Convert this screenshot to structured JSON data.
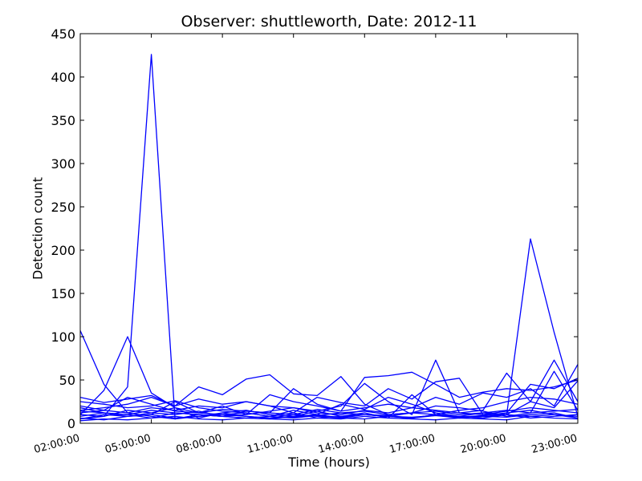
{
  "chart_data": {
    "type": "line",
    "title": "Observer: shuttleworth, Date: 2012-11",
    "xlabel": "Time (hours)",
    "ylabel": "Detection count",
    "xlim": [
      "02:00:00",
      "23:00:00"
    ],
    "ylim": [
      0,
      450
    ],
    "x_ticks": [
      "02:00:00",
      "05:00:00",
      "08:00:00",
      "11:00:00",
      "14:00:00",
      "17:00:00",
      "20:00:00",
      "23:00:00"
    ],
    "y_ticks": [
      0,
      50,
      100,
      150,
      200,
      250,
      300,
      350,
      400,
      450
    ],
    "grid": false,
    "legend": "none",
    "line_color": "#0000ff",
    "x": [
      "02:00:00",
      "03:00:00",
      "04:00:00",
      "05:00:00",
      "06:00:00",
      "07:00:00",
      "08:00:00",
      "09:00:00",
      "10:00:00",
      "11:00:00",
      "12:00:00",
      "13:00:00",
      "14:00:00",
      "15:00:00",
      "16:00:00",
      "17:00:00",
      "18:00:00",
      "19:00:00",
      "20:00:00",
      "21:00:00",
      "22:00:00",
      "23:00:00"
    ],
    "series": [
      {
        "values": [
          107,
          45,
          12,
          8,
          5,
          10,
          8,
          6,
          5,
          8,
          10,
          6,
          5,
          8,
          7,
          9,
          6,
          8,
          7,
          10,
          12,
          6
        ]
      },
      {
        "values": [
          10,
          38,
          100,
          35,
          18,
          12,
          10,
          8,
          6,
          7,
          9,
          12,
          10,
          8,
          6,
          10,
          7,
          9,
          12,
          15,
          10,
          8
        ]
      },
      {
        "values": [
          5,
          8,
          42,
          426,
          5,
          8,
          10,
          12,
          8,
          6,
          9,
          7,
          10,
          8,
          6,
          9,
          7,
          8,
          10,
          6,
          8,
          10
        ]
      },
      {
        "values": [
          8,
          12,
          10,
          6,
          12,
          10,
          8,
          6,
          8,
          12,
          6,
          8,
          10,
          9,
          6,
          10,
          8,
          12,
          10,
          213,
          105,
          8
        ]
      },
      {
        "values": [
          15,
          18,
          22,
          30,
          20,
          42,
          33,
          51,
          56,
          34,
          32,
          54,
          22,
          10,
          12,
          20,
          18,
          14,
          8,
          12,
          60,
          15
        ]
      },
      {
        "values": [
          12,
          15,
          12,
          18,
          15,
          20,
          18,
          25,
          20,
          18,
          14,
          20,
          46,
          25,
          10,
          73,
          12,
          15,
          58,
          25,
          73,
          25
        ]
      },
      {
        "values": [
          25,
          22,
          18,
          20,
          26,
          18,
          14,
          12,
          8,
          15,
          10,
          22,
          16,
          30,
          22,
          12,
          8,
          6,
          12,
          45,
          40,
          52
        ]
      },
      {
        "values": [
          20,
          15,
          30,
          22,
          14,
          12,
          16,
          14,
          12,
          40,
          22,
          14,
          53,
          55,
          59,
          45,
          30,
          36,
          40,
          38,
          42,
          50
        ]
      },
      {
        "values": [
          30,
          24,
          28,
          32,
          20,
          28,
          22,
          25,
          20,
          12,
          30,
          24,
          20,
          40,
          28,
          48,
          52,
          10,
          10,
          25,
          18,
          49
        ]
      },
      {
        "values": [
          18,
          12,
          8,
          10,
          25,
          12,
          20,
          10,
          33,
          25,
          20,
          14,
          18,
          22,
          18,
          30,
          22,
          35,
          30,
          40,
          20,
          68
        ]
      },
      {
        "values": [
          5,
          10,
          8,
          12,
          18,
          6,
          12,
          15,
          10,
          8,
          14,
          8,
          12,
          6,
          33,
          10,
          15,
          18,
          25,
          30,
          28,
          22
        ]
      },
      {
        "values": [
          10,
          8,
          15,
          12,
          10,
          14,
          8,
          10,
          14,
          18,
          12,
          10,
          15,
          12,
          18,
          15,
          12,
          10,
          14,
          18,
          15,
          12
        ]
      },
      {
        "values": [
          3,
          5,
          4,
          6,
          8,
          5,
          4,
          6,
          5,
          4,
          6,
          5,
          8,
          6,
          5,
          4,
          6,
          5,
          4,
          8,
          6,
          5
        ]
      },
      {
        "values": [
          6,
          4,
          8,
          10,
          6,
          8,
          12,
          8,
          6,
          10,
          8,
          6,
          10,
          8,
          12,
          10,
          8,
          6,
          10,
          8,
          10,
          6
        ]
      },
      {
        "values": [
          14,
          12,
          10,
          15,
          12,
          10,
          8,
          14,
          12,
          10,
          16,
          12,
          14,
          10,
          12,
          14,
          10,
          12,
          15,
          12,
          14,
          16
        ]
      }
    ]
  }
}
